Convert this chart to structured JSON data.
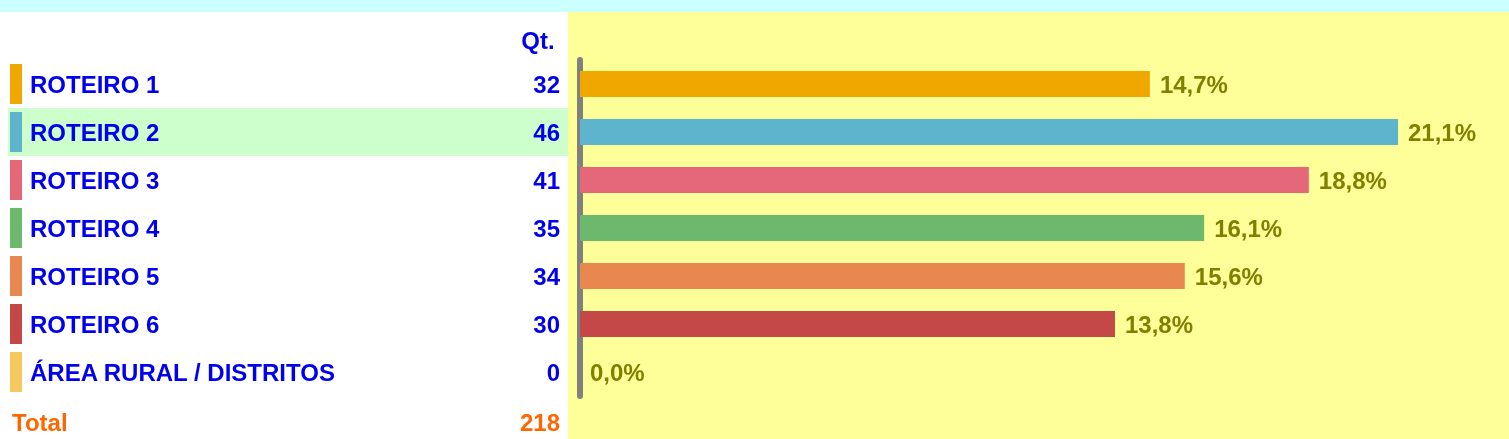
{
  "chart_data": {
    "type": "bar",
    "orientation": "horizontal",
    "categories": [
      "ROTEIRO 1",
      "ROTEIRO 2",
      "ROTEIRO 3",
      "ROTEIRO 4",
      "ROTEIRO 5",
      "ROTEIRO 6",
      "ÁREA RURAL / DISTRITOS"
    ],
    "values": [
      14.7,
      21.1,
      18.8,
      16.1,
      15.6,
      13.8,
      0.0
    ],
    "value_labels": [
      "14,7%",
      "21,1%",
      "18,8%",
      "16,1%",
      "15,6%",
      "13,8%",
      "0,0%"
    ],
    "colors": [
      "#f0a800",
      "#5eb4cc",
      "#e4687a",
      "#6cb86c",
      "#e88850",
      "#c44848",
      "#f8c860"
    ],
    "annotations": [
      "Qt.",
      "32",
      "46",
      "41",
      "35",
      "34",
      "30",
      "0",
      "Total",
      "218"
    ]
  }
}
